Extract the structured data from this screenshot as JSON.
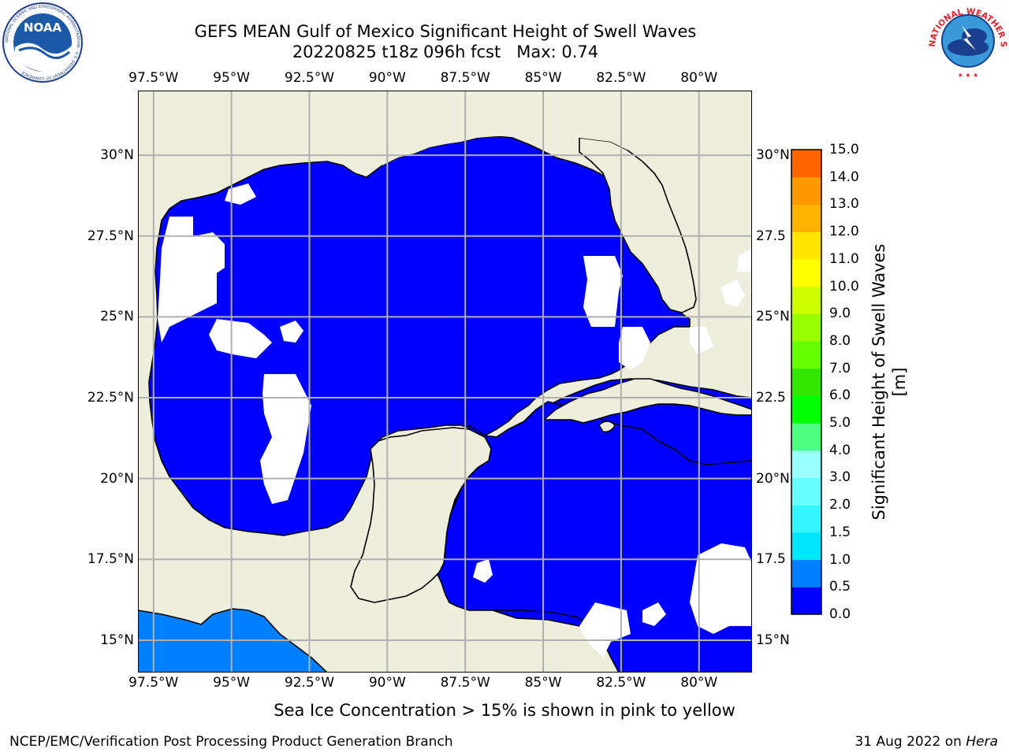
{
  "header": {
    "title_line1": "GEFS MEAN Gulf of Mexico Significant Height of Swell Waves",
    "title_line2": "20220825 t18z 096h fcst   Max: 0.74"
  },
  "logos": {
    "noaa": {
      "text": "NOAA",
      "ring_text": "NATIONAL OCEANIC AND ATMOSPHERIC ADMINISTRATION · U.S. DEPARTMENT OF COMMERCE"
    },
    "nws": {
      "ring_text": "NATIONAL WEATHER SERVICE"
    }
  },
  "map": {
    "lon_labels": [
      "97.5°W",
      "95°W",
      "92.5°W",
      "90°W",
      "87.5°W",
      "85°W",
      "82.5°W",
      "80°W"
    ],
    "lat_labels": [
      "30°N",
      "27.5°N",
      "25°N",
      "22.5°N",
      "20°N",
      "17.5°N",
      "15°N"
    ],
    "right_lat_labels": [
      "30°N",
      "27.5",
      "25°N",
      "22.5",
      "20°N",
      "17.5",
      "15°N"
    ],
    "extent": {
      "lon_min": -98,
      "lon_max": -78.3,
      "lat_min": 14,
      "lat_max": 32
    },
    "colors": {
      "land": "#eeeedd",
      "sea_0_0.5": "#0000ff",
      "sea_0.5_1.0": "#0080ff",
      "no_data": "#ffffff",
      "grid": "#b0b0b0",
      "coast": "#000000"
    }
  },
  "colorbar": {
    "label": "Significant Height of Swell Waves [m]",
    "ticks": [
      "0.0",
      "0.5",
      "1.0",
      "1.5",
      "2.0",
      "3.0",
      "4.0",
      "5.0",
      "6.0",
      "7.0",
      "8.0",
      "9.0",
      "10.0",
      "11.0",
      "12.0",
      "13.0",
      "14.0",
      "15.0"
    ],
    "colors": [
      "#0000ff",
      "#0080ff",
      "#00e6ff",
      "#33f5ff",
      "#66ffff",
      "#99ffff",
      "#4dff80",
      "#00ff00",
      "#33e600",
      "#66ff00",
      "#99ff00",
      "#ccff00",
      "#ffff00",
      "#ffe600",
      "#ffb300",
      "#ff9900",
      "#ff6600",
      "#ff3300",
      "#ff0000"
    ]
  },
  "caption": "Sea Ice Concentration > 15% is shown in pink to yellow",
  "footer": {
    "left": "NCEP/EMC/Verification Post Processing Product Generation Branch",
    "right_date": "31 Aug 2022 on ",
    "right_machine": "Hera"
  }
}
